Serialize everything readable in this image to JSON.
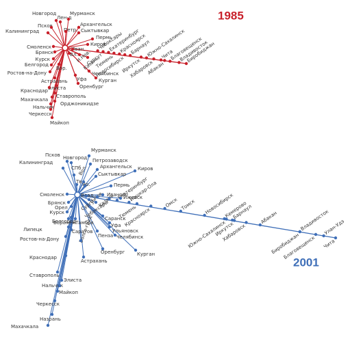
{
  "diagrams": [
    {
      "year": "1985",
      "color": "#c8202a",
      "nodes": [
        "Новгород",
        "Лен-д",
        "Мурманск",
        "Псков",
        "Калининград",
        "Петр.",
        "Архангельск",
        "Сыктывкар",
        "Пермь",
        "Смоленск",
        "Киров",
        "Брянск",
        "Иван.",
        "Вл.",
        "Курск",
        "Н.Нов.",
        "Белгород",
        "Ростов-на-Дону",
        "Вор.",
        "Казань",
        "Уфа",
        "Челябинск",
        "Курган",
        "Оренбург",
        "Астрахань",
        "Элиста",
        "Краснодар",
        "Ставрополь",
        "Махачкала",
        "Орджоникидзе",
        "Нальчик",
        "Черкесск",
        "Майкоп",
        "Чебоксары",
        "Сургут",
        "Екатеринбург",
        "Тюмень",
        "Красноярск",
        "Новосибирск",
        "Барнаул",
        "Иркутск",
        "Южно-Сахалинск",
        "Хабаровск",
        "Чита",
        "Абакан",
        "Благовещенск",
        "Владивосток",
        "Биробиджан"
      ]
    },
    {
      "year": "2001",
      "color": "#3f6fb8",
      "nodes": [
        "Псков",
        "Новгород",
        "Мурманск",
        "Калининград",
        "Петрозаводск",
        "СПб",
        "Архангельск",
        "Киров",
        "Сыктывкар",
        "Тв.",
        "Вол.",
        "Яр.",
        "Пермь",
        "Смоленск",
        "Иваново",
        "Брянск",
        "Ижевск",
        "Орел",
        "Курск",
        "Влад.",
        "Н.Нов.",
        "Казань",
        "Белгород",
        "Воронеж",
        "Тамбов",
        "Саранск",
        "Липецк",
        "Уфа",
        "Саратов",
        "Ульяновск",
        "Ростов-на-Дону",
        "Пенза",
        "Челябинск",
        "Волго-град",
        "Астрахань",
        "Оренбург",
        "Курган",
        "Краснодар",
        "Ставрополь",
        "Элиста",
        "Нальчик",
        "Майкоп",
        "Черкесск",
        "Назрань",
        "Махачкала",
        "Сургут",
        "Чебоксары",
        "Екатеринбург",
        "Йошкар-Ола",
        "Тюмень",
        "Красноярск",
        "Омск",
        "Томск",
        "Новосибирск",
        "Кемерово",
        "Южно-Сахалинск",
        "Барнаул",
        "Иркутск",
        "Хабаровск",
        "Абакан",
        "Владивосток",
        "Биробиджан",
        "Благовещенск",
        "Улан-Удэ",
        "Чита"
      ]
    }
  ]
}
